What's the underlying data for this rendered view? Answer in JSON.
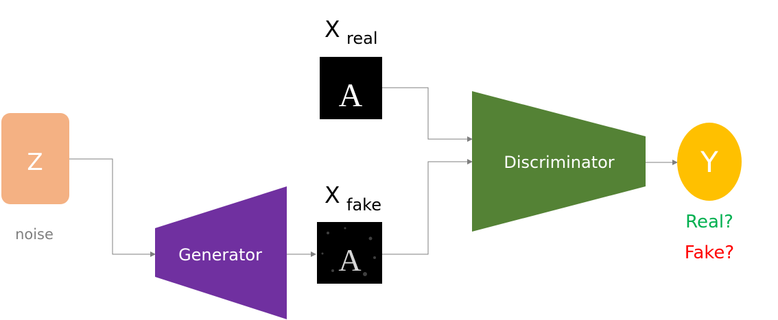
{
  "diagram": {
    "noise_block": {
      "symbol": "Z",
      "caption": "noise"
    },
    "generator": {
      "label": "Generator"
    },
    "discriminator": {
      "label": "Discriminator"
    },
    "real_input": {
      "var": "X",
      "subscript": "real",
      "glyph": "A"
    },
    "fake_input": {
      "var": "X",
      "subscript": "fake",
      "glyph": "A"
    },
    "output": {
      "symbol": "Y",
      "question_real": "Real?",
      "question_fake": "Fake?"
    },
    "colors": {
      "noise": "#f4b183",
      "generator": "#7030a0",
      "discriminator": "#548235",
      "output": "#ffc000",
      "real_text": "#00b050",
      "fake_text": "#ff0000",
      "caption_text": "#7f7f7f",
      "connector": "#7f7f7f"
    }
  }
}
